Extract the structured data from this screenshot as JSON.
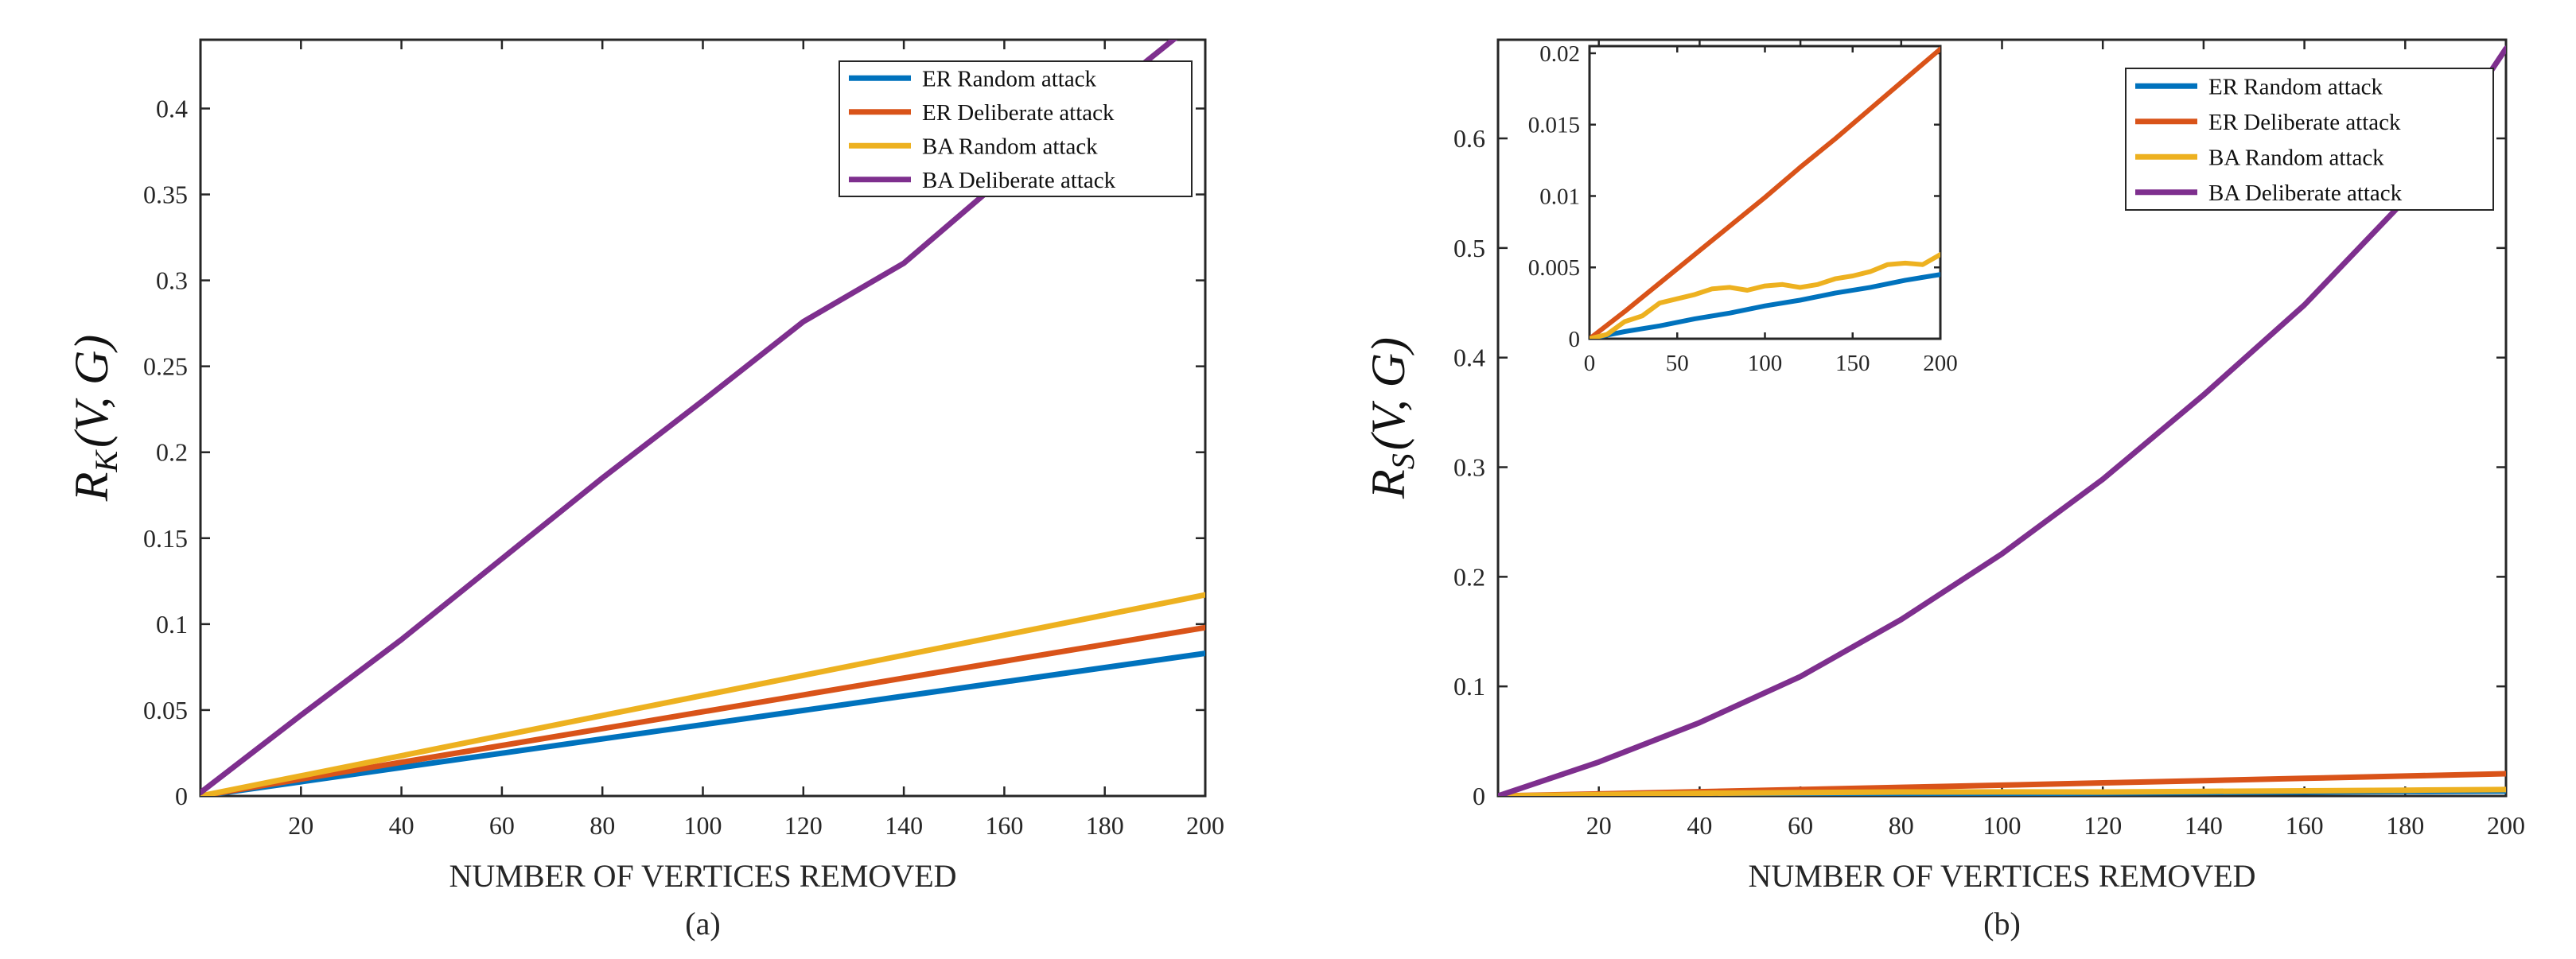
{
  "chart_data": [
    {
      "type": "line",
      "caption": "(a)",
      "xlabel": "NUMBER OF VERTICES REMOVED",
      "ylabel": {
        "base": "R",
        "sub": "K",
        "args": "(V, G)"
      },
      "xlim": [
        0,
        200
      ],
      "ylim": [
        0,
        0.44
      ],
      "xticks": [
        20,
        40,
        60,
        80,
        100,
        120,
        140,
        160,
        180,
        200
      ],
      "yticks": [
        0,
        0.05,
        0.1,
        0.15,
        0.2,
        0.25,
        0.3,
        0.35,
        0.4
      ],
      "legend_position": "top-right",
      "series": [
        {
          "name": "ER Random attack",
          "color": "#0072BD",
          "x": [
            0,
            20,
            40,
            60,
            80,
            100,
            120,
            140,
            160,
            180,
            200
          ],
          "y": [
            0,
            0.0083,
            0.0166,
            0.0249,
            0.0332,
            0.0415,
            0.0498,
            0.0581,
            0.0664,
            0.0747,
            0.083
          ]
        },
        {
          "name": "ER Deliberate attack",
          "color": "#D95319",
          "x": [
            0,
            20,
            40,
            60,
            80,
            100,
            120,
            140,
            160,
            180,
            200
          ],
          "y": [
            0,
            0.0098,
            0.0196,
            0.0294,
            0.0392,
            0.049,
            0.0588,
            0.0686,
            0.0784,
            0.0882,
            0.098
          ]
        },
        {
          "name": "BA Random attack",
          "color": "#EDB120",
          "x": [
            0,
            20,
            40,
            60,
            80,
            100,
            120,
            140,
            160,
            180,
            200
          ],
          "y": [
            0,
            0.0117,
            0.0234,
            0.0351,
            0.0468,
            0.0585,
            0.0702,
            0.0819,
            0.0936,
            0.1053,
            0.117
          ]
        },
        {
          "name": "BA Deliberate attack",
          "color": "#7E2F8E",
          "x": [
            0,
            20,
            40,
            60,
            80,
            100,
            120,
            140,
            160,
            180,
            200
          ],
          "y": [
            0.002,
            0.047,
            0.091,
            0.138,
            0.185,
            0.23,
            0.276,
            0.31,
            0.36,
            0.408,
            0.455
          ]
        }
      ]
    },
    {
      "type": "line",
      "caption": "(b)",
      "xlabel": "NUMBER OF VERTICES REMOVED",
      "ylabel": {
        "base": "R",
        "sub": "S",
        "args": "(V, G)"
      },
      "xlim": [
        0,
        200
      ],
      "ylim": [
        0,
        0.69
      ],
      "xticks": [
        20,
        40,
        60,
        80,
        100,
        120,
        140,
        160,
        180,
        200
      ],
      "yticks": [
        0,
        0.1,
        0.2,
        0.3,
        0.4,
        0.5,
        0.6
      ],
      "legend_position": "top-right",
      "series": [
        {
          "name": "ER Random attack",
          "color": "#0072BD",
          "x": [
            0,
            20,
            40,
            60,
            80,
            100,
            120,
            140,
            160,
            180,
            200
          ],
          "y": [
            0,
            0.0005,
            0.0009,
            0.0014,
            0.0018,
            0.0023,
            0.0027,
            0.0032,
            0.0036,
            0.0041,
            0.0045
          ]
        },
        {
          "name": "ER Deliberate attack",
          "color": "#D95319",
          "x": [
            0,
            20,
            40,
            60,
            80,
            100,
            120,
            140,
            160,
            180,
            200
          ],
          "y": [
            0,
            0.0019,
            0.0039,
            0.0059,
            0.0079,
            0.0099,
            0.012,
            0.014,
            0.0161,
            0.0182,
            0.0203
          ]
        },
        {
          "name": "BA Random attack",
          "color": "#EDB120",
          "x": [
            0,
            20,
            40,
            60,
            80,
            100,
            120,
            140,
            160,
            180,
            200
          ],
          "y": [
            0,
            0.0012,
            0.0025,
            0.0031,
            0.0036,
            0.0037,
            0.0036,
            0.0042,
            0.0047,
            0.0053,
            0.0059
          ]
        },
        {
          "name": "BA Deliberate attack",
          "color": "#7E2F8E",
          "x": [
            0,
            20,
            40,
            60,
            80,
            100,
            120,
            140,
            160,
            180,
            200
          ],
          "y": [
            0,
            0.031,
            0.067,
            0.109,
            0.161,
            0.221,
            0.289,
            0.366,
            0.448,
            0.544,
            0.682
          ]
        }
      ],
      "inset": {
        "xlim": [
          0,
          200
        ],
        "ylim": [
          0,
          0.0205
        ],
        "xticks": [
          0,
          50,
          100,
          150,
          200
        ],
        "yticks": [
          0,
          0.005,
          0.01,
          0.015,
          0.02
        ],
        "series": [
          {
            "name": "ER Random attack",
            "color": "#0072BD",
            "x": [
              0,
              20,
              40,
              60,
              80,
              100,
              120,
              140,
              160,
              180,
              200
            ],
            "y": [
              0,
              0.0005,
              0.0009,
              0.0014,
              0.0018,
              0.0023,
              0.0027,
              0.0032,
              0.0036,
              0.0041,
              0.0045
            ]
          },
          {
            "name": "ER Deliberate attack",
            "color": "#D95319",
            "x": [
              0,
              20,
              40,
              60,
              80,
              100,
              120,
              140,
              160,
              180,
              200
            ],
            "y": [
              0,
              0.0019,
              0.0039,
              0.0059,
              0.0079,
              0.0099,
              0.012,
              0.014,
              0.0161,
              0.0182,
              0.0203
            ]
          },
          {
            "name": "BA Random attack",
            "color": "#EDB120",
            "x": [
              0,
              10,
              20,
              30,
              40,
              50,
              60,
              70,
              80,
              90,
              100,
              110,
              120,
              130,
              140,
              150,
              160,
              170,
              180,
              190,
              200
            ],
            "y": [
              0,
              0.0003,
              0.0012,
              0.0016,
              0.0025,
              0.0028,
              0.0031,
              0.0035,
              0.0036,
              0.0034,
              0.0037,
              0.0038,
              0.0036,
              0.0038,
              0.0042,
              0.0044,
              0.0047,
              0.0052,
              0.0053,
              0.0052,
              0.0059
            ]
          }
        ]
      }
    }
  ]
}
